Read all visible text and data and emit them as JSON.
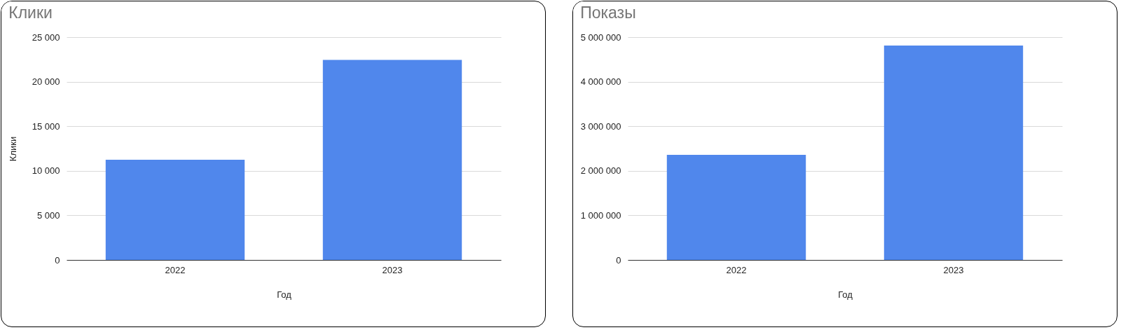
{
  "chart_data": [
    {
      "type": "bar",
      "title": "Клики",
      "xlabel": "Год",
      "ylabel": "Клики",
      "categories": [
        "2022",
        "2023"
      ],
      "values": [
        11250,
        22450
      ],
      "color": "#5087ec",
      "ylim": [
        0,
        25000
      ],
      "yticks": [
        0,
        {
          "value": 5000,
          "label": "5 000"
        },
        {
          "value": 10000,
          "label": "10 000"
        },
        {
          "value": 15000,
          "label": "15 000"
        },
        {
          "value": 20000,
          "label": "20 000"
        },
        {
          "value": 25000,
          "label": "25 000"
        }
      ],
      "grid": "y"
    },
    {
      "type": "bar",
      "title": "Показы",
      "xlabel": "Год",
      "categories": [
        "2022",
        "2023"
      ],
      "values": [
        2360000,
        4810000
      ],
      "color": "#5087ec",
      "ylim": [
        0,
        5000000
      ],
      "yticks": [
        0,
        {
          "value": 1000000,
          "label": "1 000 000"
        },
        {
          "value": 2000000,
          "label": "2 000 000"
        },
        {
          "value": 3000000,
          "label": "3 000 000"
        },
        {
          "value": 4000000,
          "label": "4 000 000"
        },
        {
          "value": 5000000,
          "label": "5 000 000"
        }
      ],
      "grid": "y"
    }
  ]
}
